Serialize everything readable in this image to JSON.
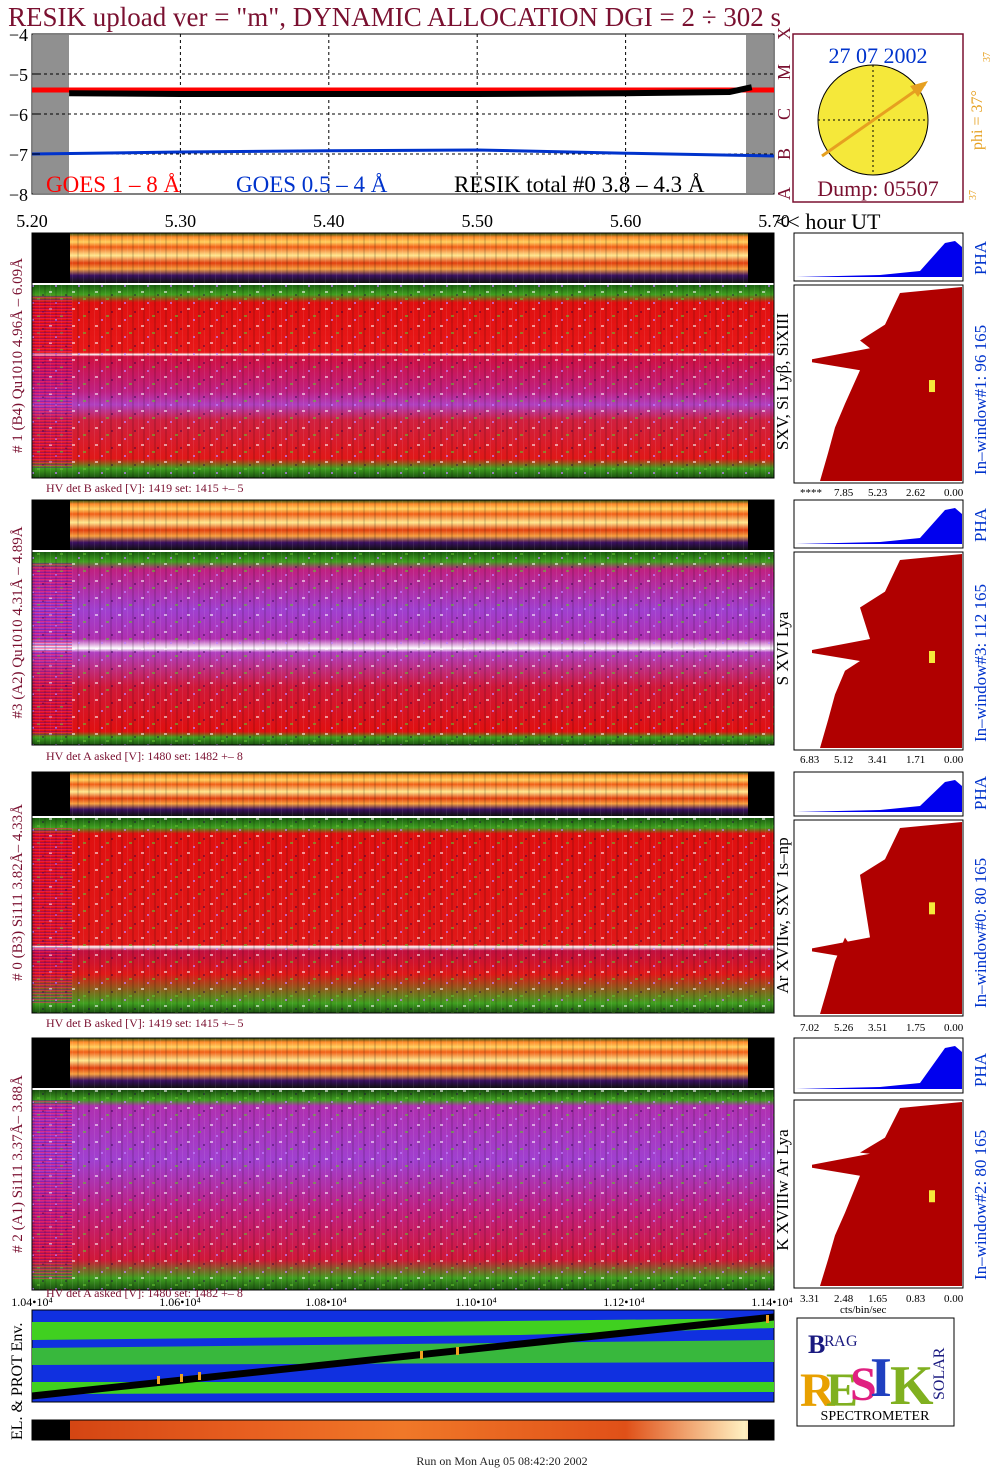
{
  "title": "RESIK upload ver = \"m\", DYNAMIC ALLOCATION  DGI =   2 ÷ 302 s",
  "footer": "Run on Mon Aug 05 08:42:20 2002",
  "colors": {
    "title": "#7a1030",
    "goes_long": "#ff0000",
    "goes_short": "#0033cc",
    "resik": "#000000",
    "pha": "#0000ee",
    "spectrum": "#b00000",
    "sun": "#f5e83a",
    "arrow": "#e6a020"
  },
  "light_curve": {
    "legend": [
      "GOES 1 – 8 Å",
      "GOES 0.5 – 4 Å",
      "RESIK total #0  3.8 – 4.3 Å"
    ],
    "y_ticks": [
      "−4",
      "−5",
      "−6",
      "−7",
      "−8"
    ],
    "x_ticks": [
      "5.20",
      "5.30",
      "5.40",
      "5.50",
      "5.60",
      "5.70"
    ],
    "x_unit": "<< hour UT",
    "class_labels": [
      "X",
      "M",
      "C",
      "B",
      "A"
    ]
  },
  "chart_data": {
    "type": "line",
    "x_label": "hour UT",
    "xlim": [
      5.2,
      5.7
    ],
    "ylim": [
      -8,
      -4
    ],
    "series": [
      {
        "name": "GOES 1 – 8 Å",
        "x": [
          5.2,
          5.3,
          5.4,
          5.5,
          5.6,
          5.7
        ],
        "y": [
          -5.4,
          -5.4,
          -5.4,
          -5.4,
          -5.4,
          -5.4
        ]
      },
      {
        "name": "GOES 0.5 – 4 Å",
        "x": [
          5.2,
          5.3,
          5.4,
          5.5,
          5.6,
          5.7
        ],
        "y": [
          -7.0,
          -6.95,
          -6.92,
          -6.9,
          -6.98,
          -7.05
        ]
      },
      {
        "name": "RESIK total #0  3.8 – 4.3 Å",
        "x": [
          5.225,
          5.3,
          5.4,
          5.5,
          5.6,
          5.67,
          5.685
        ],
        "y": [
          -5.48,
          -5.5,
          -5.5,
          -5.5,
          -5.48,
          -5.45,
          -5.33
        ]
      }
    ]
  },
  "sun_panel": {
    "date": "27 07 2002",
    "dump": "Dump: 05507",
    "phi": "phi = 37°",
    "small_top": "37",
    "small_bottom": "37"
  },
  "channels": [
    {
      "side_label": "# 1 (B4) Qu1010 4.96Å – 6.09Å",
      "line_ids": "SXV, Si Lyβ, SiXIII",
      "hv": "HV det B asked [V]:  1419 set:  1415 +–    5",
      "window": "In–window#1:  96 165  PHA",
      "axis": [
        "****",
        "7.85",
        "5.23",
        "2.62",
        "0.00"
      ]
    },
    {
      "side_label": "#3 (A2) Qu1010  4.31Å – 4.89Å",
      "line_ids": "S XVI Lya",
      "hv": "HV det A asked [V]:  1480 set:  1482 +–    8",
      "window": "In–window#3:  112 165  PHA",
      "axis": [
        "6.83",
        "5.12",
        "3.41",
        "1.71",
        "0.00"
      ]
    },
    {
      "side_label": "# 0 (B3) Si111  3.82Å– 4.33Å",
      "line_ids": "Ar XVIIw,  SXV 1s–np",
      "hv": "HV det B asked [V]:  1419 set:  1415 +–    5",
      "window": "In–window#0:   80 165  PHA",
      "axis": [
        "7.02",
        "5.26",
        "3.51",
        "1.75",
        "0.00"
      ]
    },
    {
      "side_label": "# 2 (A1) Si111  3.37Å– 3.88Å",
      "line_ids": "K XVIIIw  Ar Lya",
      "hv": "HV det A asked [V]:  1480 set:  1482 +–    8",
      "window": "In–window#2:   80 165  PHA",
      "axis": [
        "3.31",
        "2.48",
        "1.65",
        "0.83",
        "0.00"
      ]
    }
  ],
  "spectrum_unit": "cts/bin/sec",
  "env": {
    "label": "EL. & PROT Env.",
    "x_ticks": [
      "1.04•10⁴",
      "1.06•10⁴",
      "1.08•10⁴",
      "1.10•10⁴",
      "1.12•10⁴",
      "1.14•10⁴"
    ]
  },
  "logo": {
    "letters": [
      "B",
      "R",
      "A",
      "G",
      "R",
      "E",
      "S",
      "I",
      "K",
      "S",
      "O",
      "L",
      "A",
      "R"
    ],
    "word": "SPECTROMETER"
  }
}
